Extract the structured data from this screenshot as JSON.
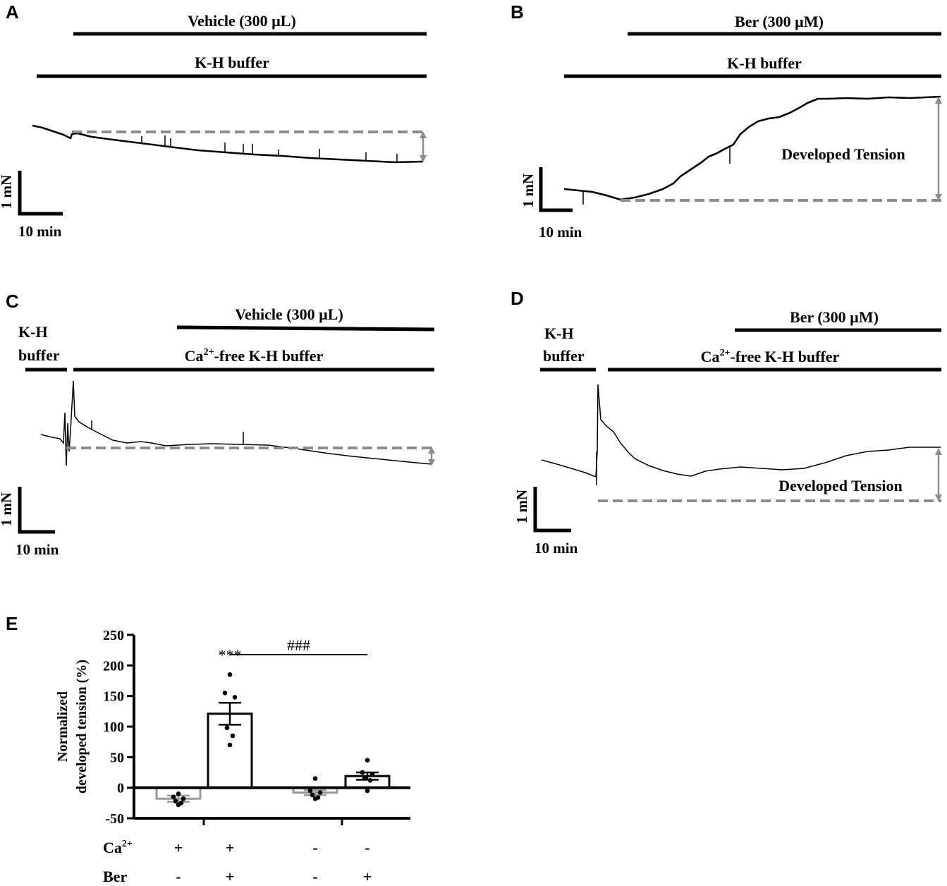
{
  "panels": {
    "A": {
      "letter": "A",
      "top_label": "Vehicle (300 µL)",
      "buffer_label": "K-H buffer",
      "scale_y": "1 mN",
      "scale_x": "10 min"
    },
    "B": {
      "letter": "B",
      "top_label": "Ber (300 µM)",
      "buffer_label": "K-H buffer",
      "annotation": "Developed Tension",
      "scale_y": "1 mN",
      "scale_x": "10 min"
    },
    "C": {
      "letter": "C",
      "top_label": "Vehicle (300 µL)",
      "pre_label_1": "K-H",
      "pre_label_2": "buffer",
      "buffer_label_pre": "Ca",
      "buffer_label_sup": "2+",
      "buffer_label_post": "-free K-H buffer",
      "scale_y": "1 mN",
      "scale_x": "10 min"
    },
    "D": {
      "letter": "D",
      "top_label": "Ber (300 µM)",
      "pre_label_1": "K-H",
      "pre_label_2": "buffer",
      "buffer_label_pre": "Ca",
      "buffer_label_sup": "2+",
      "buffer_label_post": "-free K-H buffer",
      "annotation": "Developed Tension",
      "scale_y": "1 mN",
      "scale_x": "10 min"
    }
  },
  "chart_data": {
    "type": "bar",
    "panel_letter": "E",
    "ylabel_line1": "Normalized",
    "ylabel_line2": "developed tension (%)",
    "ylim": [
      -50,
      250
    ],
    "yticks": [
      -50,
      0,
      50,
      100,
      150,
      200,
      250
    ],
    "row_labels": [
      {
        "pre": "Ca",
        "sup": "2+"
      },
      {
        "pre": "Ber",
        "sup": ""
      }
    ],
    "groups": [
      {
        "ca": "+",
        "ber": "-",
        "value": -18,
        "sem": 5,
        "color": "#9a9a9a",
        "points": [
          -10,
          -15,
          -18,
          -22,
          -25,
          -28
        ]
      },
      {
        "ca": "+",
        "ber": "+",
        "value": 121,
        "sem": 18,
        "color": "#000000",
        "points": [
          185,
          155,
          148,
          98,
          85,
          70
        ],
        "annotation": "***"
      },
      {
        "ca": "-",
        "ber": "-",
        "value": -8,
        "sem": 4,
        "color": "#9a9a9a",
        "points": [
          15,
          -5,
          -8,
          -12,
          -16,
          -18
        ]
      },
      {
        "ca": "-",
        "ber": "+",
        "value": 19,
        "sem": 6,
        "color": "#000000",
        "points": [
          45,
          25,
          22,
          15,
          12,
          -5
        ]
      }
    ],
    "comparison": {
      "from_group": 1,
      "to_group": 3,
      "label": "###"
    }
  }
}
